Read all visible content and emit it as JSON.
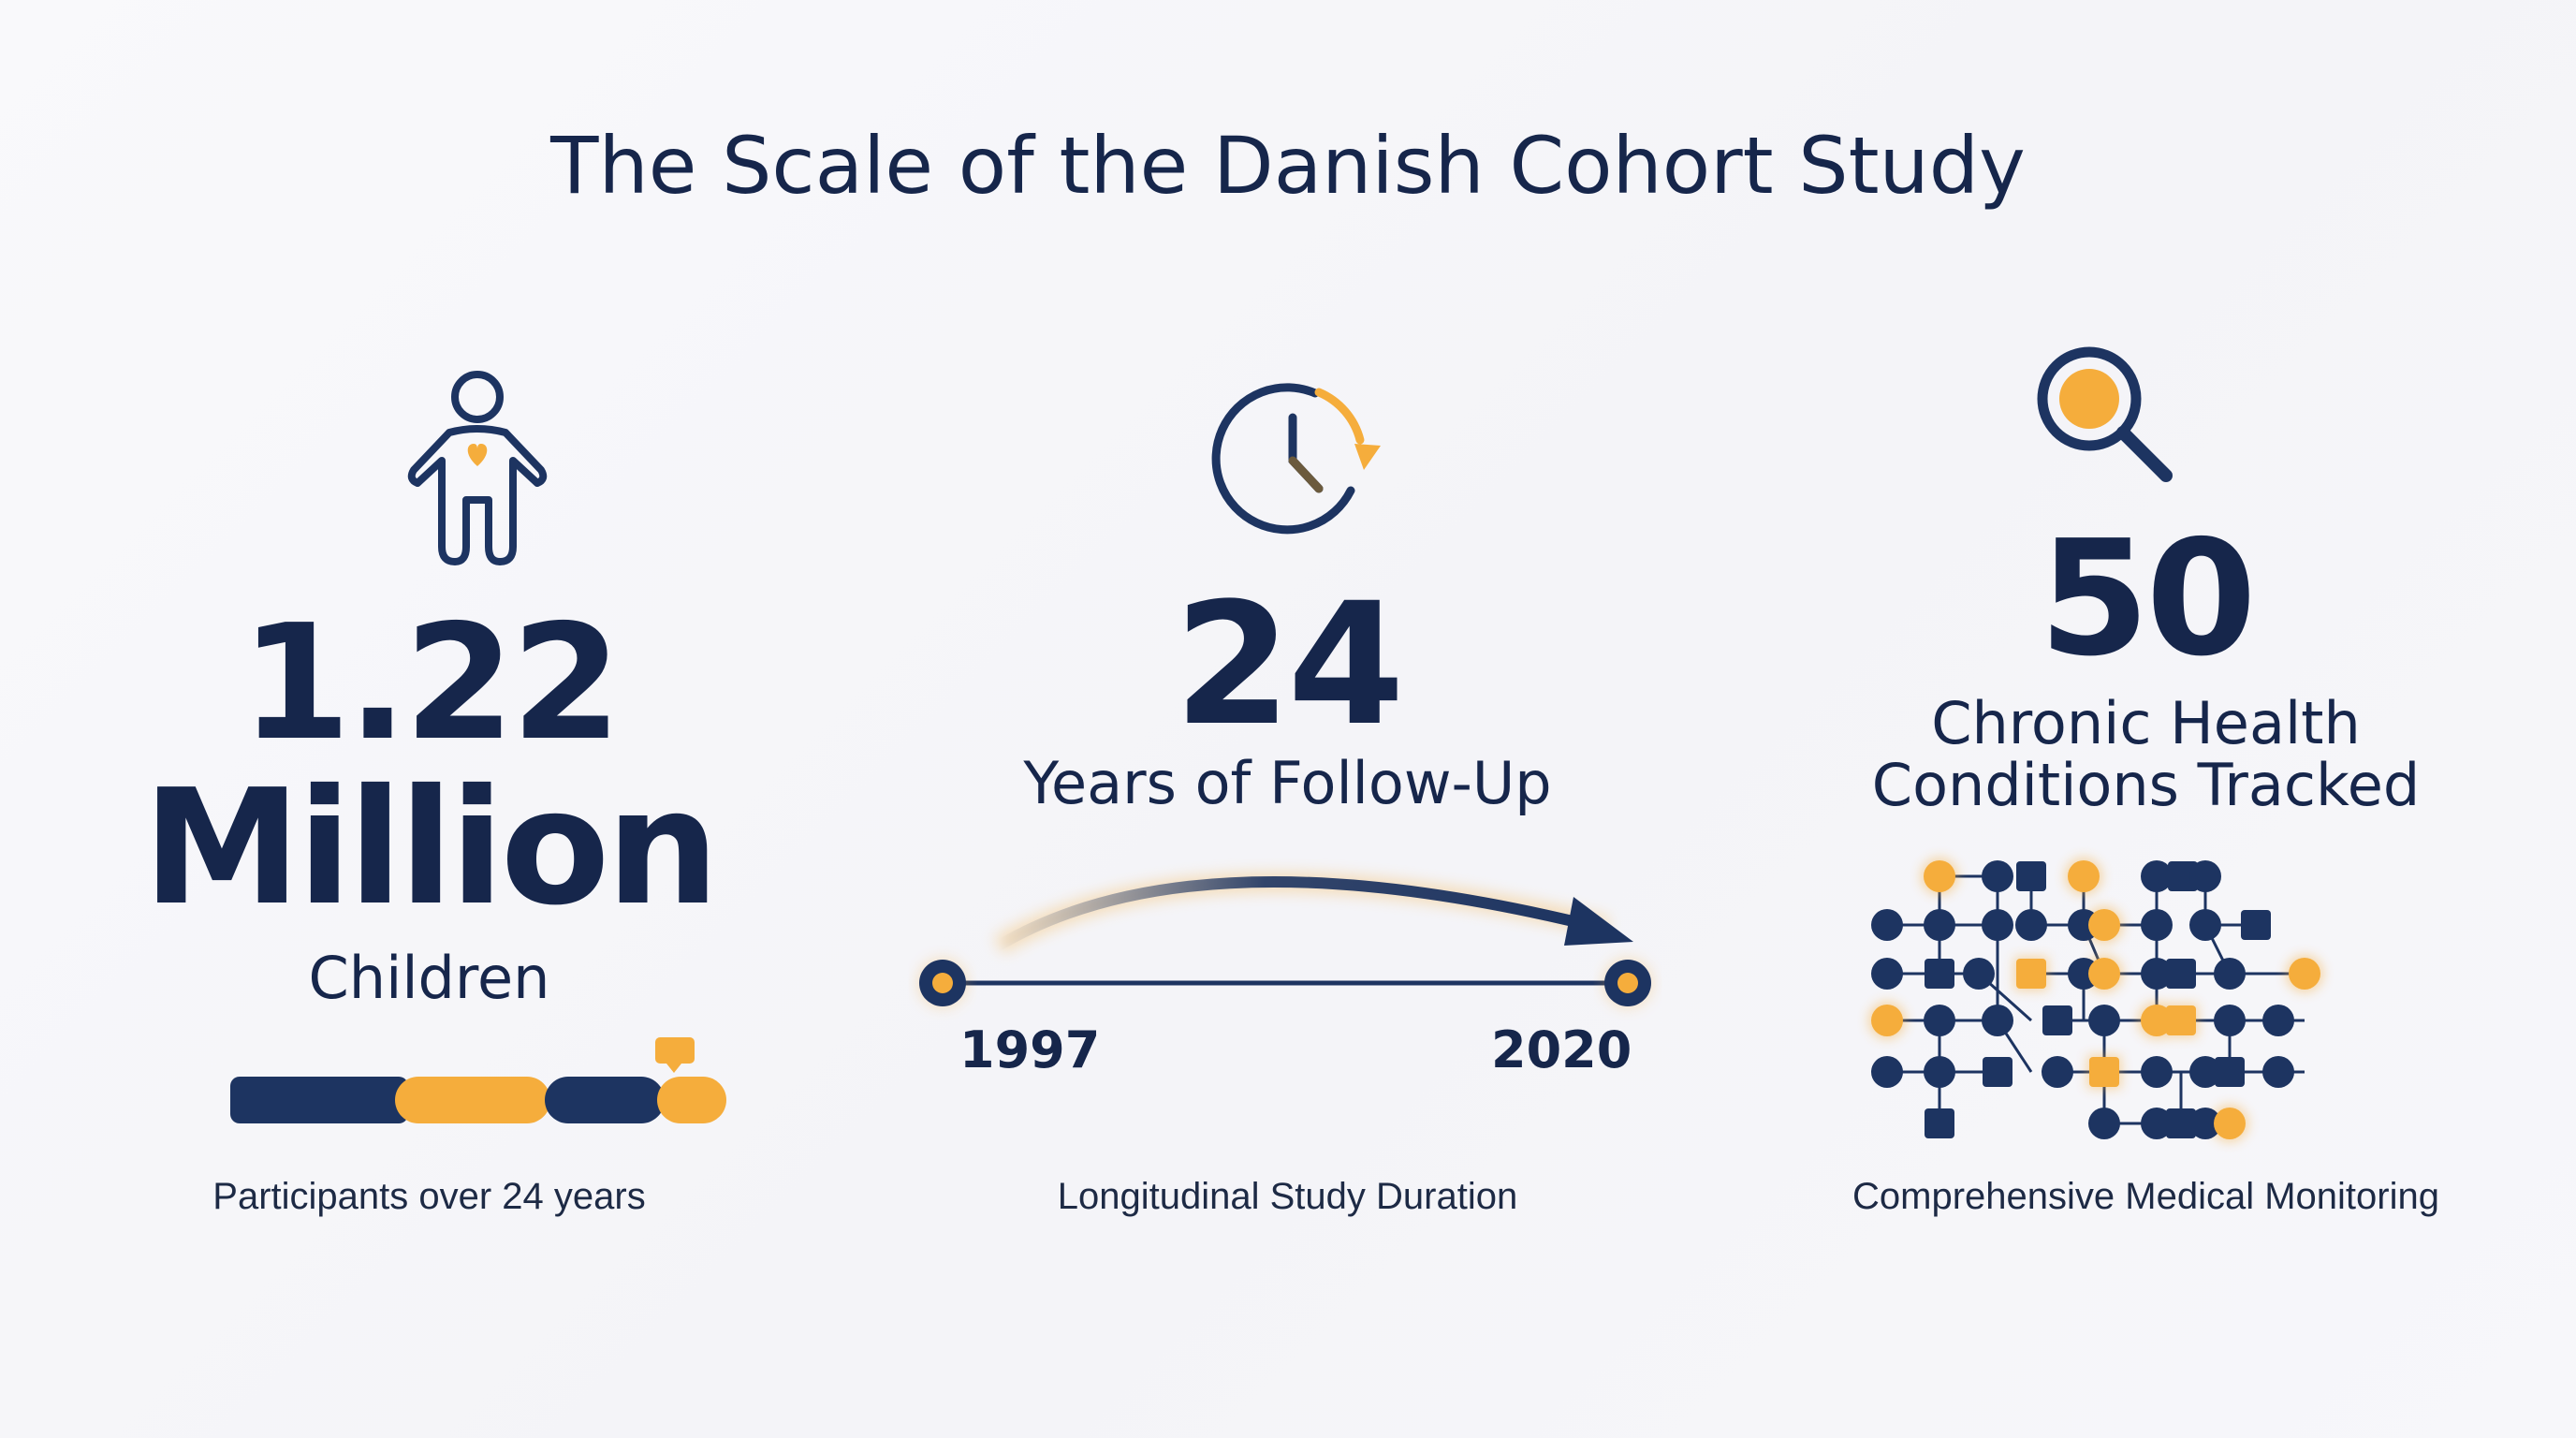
{
  "title": "The Scale of the Danish Cohort Study",
  "colors": {
    "navy": "#1d3461",
    "gold": "#f5ad3c",
    "text": "#16264b"
  },
  "stats": [
    {
      "icon": "child-heart-icon",
      "value_line1": "1.22",
      "value_line2": "Million",
      "label": "Children",
      "caption": "Participants over 24 years",
      "progress_segments": [
        "navy",
        "gold",
        "navy",
        "gold"
      ]
    },
    {
      "icon": "clock-arrow-icon",
      "value": "24",
      "label": "Years of Follow-Up",
      "timeline": {
        "start": "1997",
        "end": "2020"
      },
      "caption": "Longitudinal Study Duration"
    },
    {
      "icon": "magnifier-icon",
      "value": "50",
      "label_line1": "Chronic Health",
      "label_line2": "Conditions Tracked",
      "network_icon": "node-network-icon",
      "caption": "Comprehensive Medical Monitoring"
    }
  ]
}
